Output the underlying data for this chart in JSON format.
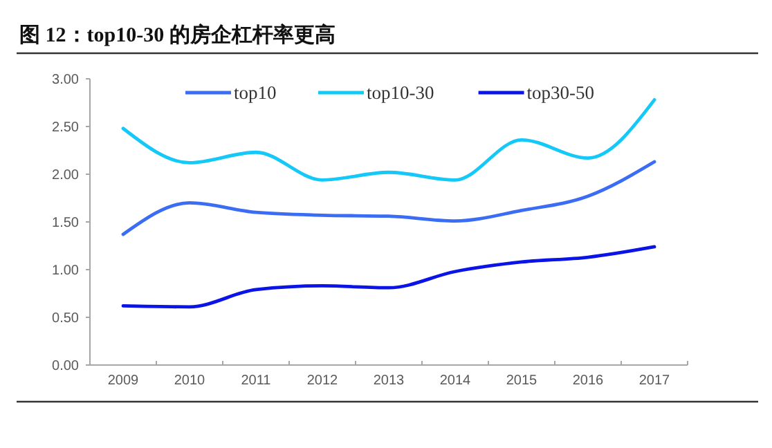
{
  "chart_data": {
    "type": "line",
    "title": "图 12：top10-30 的房企杠杆率更高",
    "categories": [
      "2009",
      "2010",
      "2011",
      "2012",
      "2013",
      "2014",
      "2015",
      "2016",
      "2017"
    ],
    "series": [
      {
        "name": "top10",
        "color": "#3a6cf4",
        "values": [
          1.37,
          1.7,
          1.6,
          1.57,
          1.56,
          1.51,
          1.62,
          1.77,
          2.13
        ]
      },
      {
        "name": "top10-30",
        "color": "#14c8f8",
        "values": [
          2.48,
          2.12,
          2.23,
          1.94,
          2.02,
          1.94,
          2.36,
          2.17,
          2.78
        ]
      },
      {
        "name": "top30-50",
        "color": "#0a14e6",
        "values": [
          0.62,
          0.61,
          0.79,
          0.83,
          0.81,
          0.98,
          1.08,
          1.13,
          1.24
        ]
      }
    ],
    "ylim": [
      0,
      3
    ],
    "yticks": [
      {
        "value": 0,
        "label": "0.00"
      },
      {
        "value": 0.5,
        "label": "0.50"
      },
      {
        "value": 1,
        "label": "1.00"
      },
      {
        "value": 1.5,
        "label": "1.50"
      },
      {
        "value": 2,
        "label": "2.00"
      },
      {
        "value": 2.5,
        "label": "2.50"
      },
      {
        "value": 3,
        "label": "3.00"
      }
    ],
    "legend": "top"
  }
}
